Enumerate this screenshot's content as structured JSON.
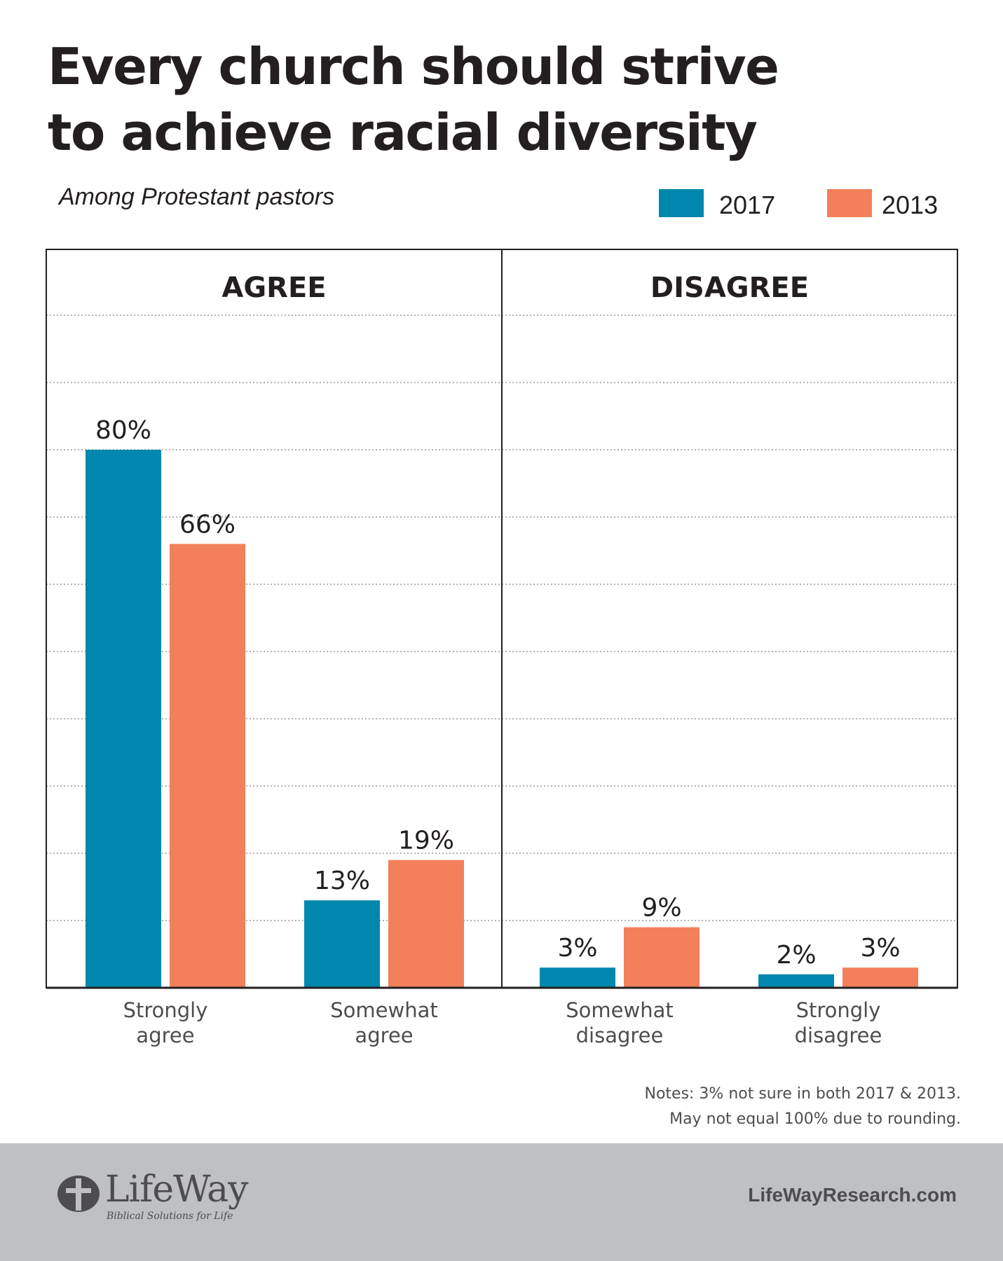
{
  "title_lines": [
    "Every church should strive",
    "to achieve racial diversity"
  ],
  "subtitle": "Among Protestant pastors",
  "legend": [
    {
      "label": "2017",
      "color": "#0087ad"
    },
    {
      "label": "2013",
      "color": "#f2805b"
    }
  ],
  "notes": [
    "Notes: 3% not sure in both 2017 & 2013.",
    "May not equal 100% due to rounding."
  ],
  "footer": {
    "brand": "LifeWay",
    "tagline": "Biblical Solutions for Life",
    "site": "LifeWayResearch.com"
  },
  "chart_data": {
    "type": "bar",
    "title": "Every church should strive to achieve racial diversity",
    "subtitle": "Among Protestant pastors",
    "ylim": [
      0,
      100
    ],
    "grid": true,
    "legend_position": "top-right",
    "panels": [
      {
        "label": "AGREE",
        "categories": [
          [
            "Strongly",
            "agree"
          ],
          [
            "Somewhat",
            "agree"
          ]
        ]
      },
      {
        "label": "DISAGREE",
        "categories": [
          [
            "Somewhat",
            "disagree"
          ],
          [
            "Strongly",
            "disagree"
          ]
        ]
      }
    ],
    "categories": [
      "Strongly agree",
      "Somewhat agree",
      "Somewhat disagree",
      "Strongly disagree"
    ],
    "series": [
      {
        "name": "2017",
        "color": "#0087ad",
        "values": [
          80,
          13,
          3,
          2
        ],
        "labels": [
          "80%",
          "13%",
          "3%",
          "2%"
        ]
      },
      {
        "name": "2013",
        "color": "#f2805b",
        "values": [
          66,
          19,
          9,
          3
        ],
        "labels": [
          "66%",
          "19%",
          "9%",
          "3%"
        ]
      }
    ]
  }
}
